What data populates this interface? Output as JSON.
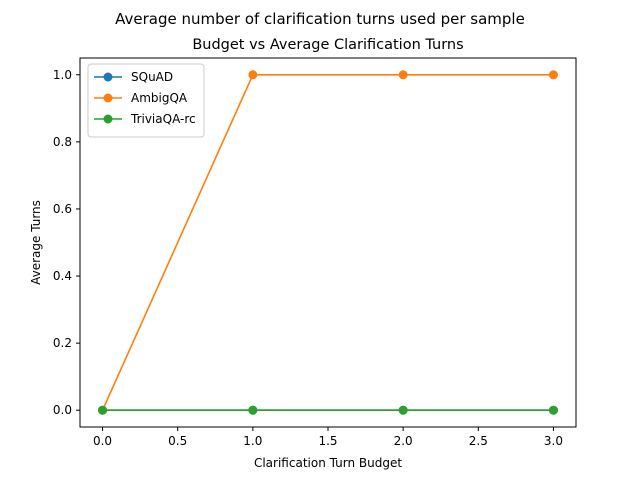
{
  "chart_data": {
    "type": "line",
    "suptitle": "Average number of clarification turns used per sample",
    "title": "Budget vs Average Clarification Turns",
    "xlabel": "Clarification Turn Budget",
    "ylabel": "Average Turns",
    "x": [
      0,
      1,
      2,
      3
    ],
    "xlim": [
      -0.15,
      3.15
    ],
    "ylim": [
      -0.05,
      1.05
    ],
    "xticks": [
      0,
      0.5,
      1,
      1.5,
      2,
      2.5,
      3
    ],
    "xtick_labels": [
      "0.0",
      "0.5",
      "1.0",
      "1.5",
      "2.0",
      "2.5",
      "3.0"
    ],
    "yticks": [
      0,
      0.2,
      0.4,
      0.6,
      0.8,
      1.0
    ],
    "ytick_labels": [
      "0.0",
      "0.2",
      "0.4",
      "0.6",
      "0.8",
      "1.0"
    ],
    "grid": false,
    "legend_position": "top-left",
    "series": [
      {
        "name": "SQuAD",
        "values": [
          0,
          0,
          0,
          0
        ],
        "color": "#1f77b4"
      },
      {
        "name": "AmbigQA",
        "values": [
          0,
          1,
          1,
          1
        ],
        "color": "#ff7f0e"
      },
      {
        "name": "TriviaQA-rc",
        "values": [
          0,
          0,
          0,
          0
        ],
        "color": "#2ca02c"
      }
    ]
  }
}
